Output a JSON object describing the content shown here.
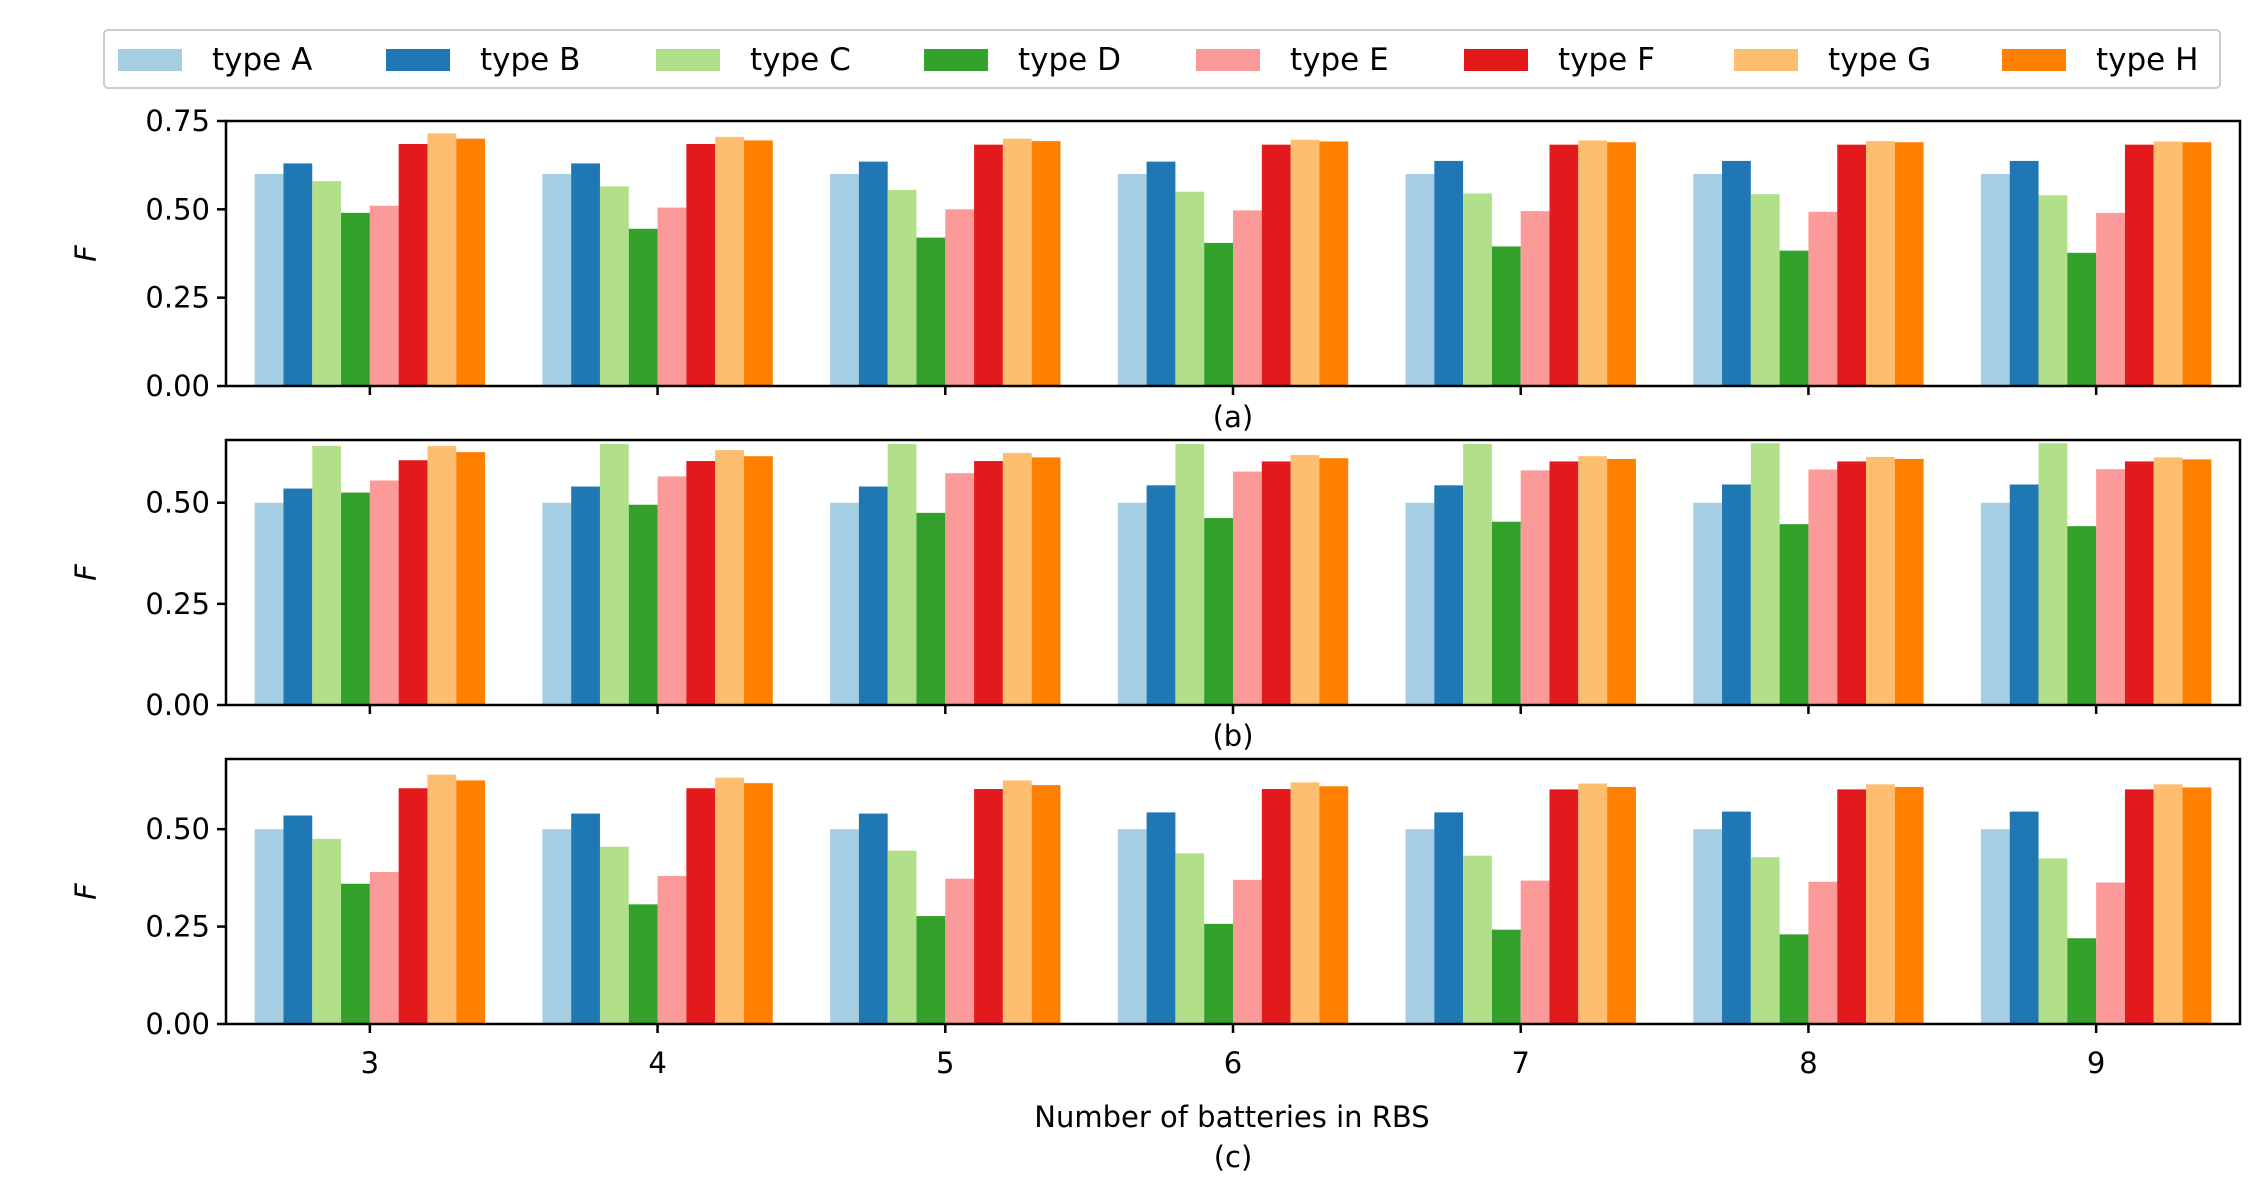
{
  "legend": {
    "position": "top",
    "entries": [
      "type A",
      "type B",
      "type C",
      "type D",
      "type E",
      "type F",
      "type G",
      "type H"
    ]
  },
  "colors": [
    "#a6cee3",
    "#1f78b4",
    "#b2df8a",
    "#33a02c",
    "#fb9a99",
    "#e31a1c",
    "#fdbf6f",
    "#ff7f00"
  ],
  "xlabel": "Number of batteries in RBS",
  "chart_data": [
    {
      "type": "bar",
      "caption": "(a)",
      "ylabel": "F",
      "ylim": [
        0,
        0.75
      ],
      "yticks": [
        "0.00",
        "0.25",
        "0.50",
        "0.75"
      ],
      "categories": [
        "3",
        "4",
        "5",
        "6",
        "7",
        "8",
        "9"
      ],
      "series": [
        {
          "name": "type A",
          "values": [
            0.6,
            0.6,
            0.6,
            0.6,
            0.6,
            0.6,
            0.6
          ]
        },
        {
          "name": "type B",
          "values": [
            0.63,
            0.63,
            0.635,
            0.635,
            0.637,
            0.637,
            0.637
          ]
        },
        {
          "name": "type C",
          "values": [
            0.58,
            0.565,
            0.555,
            0.55,
            0.545,
            0.543,
            0.54
          ]
        },
        {
          "name": "type D",
          "values": [
            0.49,
            0.445,
            0.42,
            0.405,
            0.395,
            0.383,
            0.377
          ]
        },
        {
          "name": "type E",
          "values": [
            0.51,
            0.505,
            0.5,
            0.497,
            0.495,
            0.493,
            0.49
          ]
        },
        {
          "name": "type F",
          "values": [
            0.685,
            0.685,
            0.683,
            0.683,
            0.683,
            0.683,
            0.683
          ]
        },
        {
          "name": "type G",
          "values": [
            0.715,
            0.705,
            0.7,
            0.697,
            0.695,
            0.693,
            0.692
          ]
        },
        {
          "name": "type H",
          "values": [
            0.7,
            0.695,
            0.693,
            0.692,
            0.69,
            0.69,
            0.69
          ]
        }
      ]
    },
    {
      "type": "bar",
      "caption": "(b)",
      "ylabel": "F",
      "ylim": [
        0,
        0.655
      ],
      "yticks": [
        "0.00",
        "0.25",
        "0.50"
      ],
      "categories": [
        "3",
        "4",
        "5",
        "6",
        "7",
        "8",
        "9"
      ],
      "series": [
        {
          "name": "type A",
          "values": [
            0.5,
            0.5,
            0.5,
            0.5,
            0.5,
            0.5,
            0.5
          ]
        },
        {
          "name": "type B",
          "values": [
            0.535,
            0.54,
            0.54,
            0.543,
            0.543,
            0.545,
            0.545
          ]
        },
        {
          "name": "type C",
          "values": [
            0.64,
            0.645,
            0.645,
            0.645,
            0.645,
            0.647,
            0.647
          ]
        },
        {
          "name": "type D",
          "values": [
            0.525,
            0.495,
            0.475,
            0.462,
            0.453,
            0.447,
            0.442
          ]
        },
        {
          "name": "type E",
          "values": [
            0.555,
            0.565,
            0.573,
            0.577,
            0.58,
            0.582,
            0.583
          ]
        },
        {
          "name": "type F",
          "values": [
            0.605,
            0.603,
            0.603,
            0.602,
            0.602,
            0.602,
            0.602
          ]
        },
        {
          "name": "type G",
          "values": [
            0.64,
            0.63,
            0.623,
            0.618,
            0.615,
            0.613,
            0.612
          ]
        },
        {
          "name": "type H",
          "values": [
            0.625,
            0.615,
            0.612,
            0.61,
            0.608,
            0.608,
            0.607
          ]
        }
      ]
    },
    {
      "type": "bar",
      "caption": "(c)",
      "ylabel": "F",
      "ylim": [
        0,
        0.68
      ],
      "yticks": [
        "0.00",
        "0.25",
        "0.50"
      ],
      "categories": [
        "3",
        "4",
        "5",
        "6",
        "7",
        "8",
        "9"
      ],
      "series": [
        {
          "name": "type A",
          "values": [
            0.5,
            0.5,
            0.5,
            0.5,
            0.5,
            0.5,
            0.5
          ]
        },
        {
          "name": "type B",
          "values": [
            0.535,
            0.54,
            0.54,
            0.543,
            0.543,
            0.545,
            0.545
          ]
        },
        {
          "name": "type C",
          "values": [
            0.475,
            0.455,
            0.445,
            0.438,
            0.432,
            0.428,
            0.425
          ]
        },
        {
          "name": "type D",
          "values": [
            0.36,
            0.307,
            0.277,
            0.257,
            0.242,
            0.23,
            0.22
          ]
        },
        {
          "name": "type E",
          "values": [
            0.39,
            0.38,
            0.373,
            0.37,
            0.368,
            0.365,
            0.363
          ]
        },
        {
          "name": "type F",
          "values": [
            0.605,
            0.605,
            0.603,
            0.603,
            0.602,
            0.602,
            0.602
          ]
        },
        {
          "name": "type G",
          "values": [
            0.64,
            0.632,
            0.625,
            0.62,
            0.617,
            0.615,
            0.615
          ]
        },
        {
          "name": "type H",
          "values": [
            0.625,
            0.618,
            0.613,
            0.61,
            0.608,
            0.608,
            0.607
          ]
        }
      ]
    }
  ]
}
